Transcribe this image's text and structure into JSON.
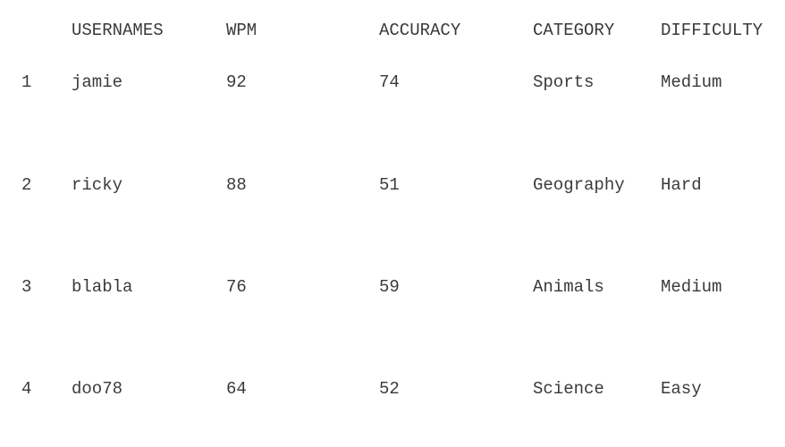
{
  "table": {
    "headers": {
      "rank": "",
      "username": "USERNAMES",
      "wpm": "WPM",
      "accuracy": "ACCURACY",
      "category": "CATEGORY",
      "difficulty": "DIFFICULTY"
    },
    "rows": [
      {
        "rank": "1",
        "username": "jamie",
        "wpm": "92",
        "accuracy": "74",
        "category": "Sports",
        "difficulty": "Medium"
      },
      {
        "rank": "2",
        "username": "ricky",
        "wpm": "88",
        "accuracy": "51",
        "category": "Geography",
        "difficulty": "Hard"
      },
      {
        "rank": "3",
        "username": "blabla",
        "wpm": "76",
        "accuracy": "59",
        "category": "Animals",
        "difficulty": "Medium"
      },
      {
        "rank": "4",
        "username": "doo78",
        "wpm": "64",
        "accuracy": "52",
        "category": "Science",
        "difficulty": "Easy"
      }
    ]
  },
  "colors": {
    "text": "#3a3a3a",
    "background": "#ffffff"
  }
}
